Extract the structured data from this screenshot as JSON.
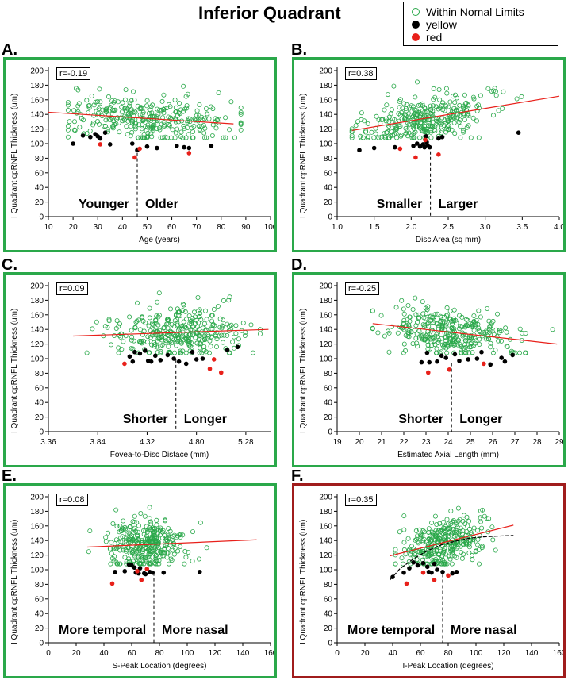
{
  "figure": {
    "title": "Inferior Quadrant",
    "legend": [
      {
        "label": "Within Nomal Limits",
        "kind": "open",
        "color": "#2aa84a"
      },
      {
        "label": "yellow",
        "kind": "filled",
        "color": "#000000"
      },
      {
        "label": "red",
        "kind": "filled",
        "color": "#e8201a"
      }
    ]
  },
  "chart_data": [
    {
      "id": "A",
      "letter": "A.",
      "type": "scatter",
      "frame_color": "#2aa84a",
      "r_label": "r=-0.19",
      "xlabel": "Age (years)",
      "ylabel": "I Quadrant cpRNFL Thickness (um)",
      "xlim": [
        10,
        100
      ],
      "ylim": [
        0,
        200
      ],
      "xticks": [
        10,
        20,
        30,
        40,
        50,
        60,
        70,
        80,
        90,
        100
      ],
      "xtick_labels": [
        "10",
        "20",
        "30",
        "40",
        "50",
        "60",
        "70",
        "80",
        "90",
        "100"
      ],
      "yticks": [
        0,
        20,
        40,
        60,
        80,
        100,
        120,
        140,
        160,
        180,
        200
      ],
      "normal_x_range": [
        18,
        88
      ],
      "normal_center": 51,
      "normal_x_sd": 17,
      "normal_count": 320,
      "trend": {
        "x": [
          10,
          85
        ],
        "y": [
          143,
          127
        ]
      },
      "divider_x": 46,
      "divider_y": 95,
      "left_label": "Younger",
      "right_label": "Older",
      "yellow": [
        [
          20,
          100
        ],
        [
          24,
          111
        ],
        [
          27,
          109
        ],
        [
          29,
          113
        ],
        [
          30,
          110
        ],
        [
          31,
          107
        ],
        [
          33,
          115
        ],
        [
          35,
          99
        ],
        [
          44,
          100
        ],
        [
          46,
          91
        ],
        [
          50,
          96
        ],
        [
          54,
          94
        ],
        [
          62,
          97
        ],
        [
          65,
          95
        ],
        [
          67,
          94
        ],
        [
          76,
          97
        ]
      ],
      "red": [
        [
          31,
          99
        ],
        [
          45,
          81
        ],
        [
          47,
          93
        ],
        [
          67,
          87
        ]
      ]
    },
    {
      "id": "B",
      "letter": "B.",
      "type": "scatter",
      "frame_color": "#2aa84a",
      "r_label": "r=0.38",
      "xlabel": "Disc Area (sq mm)",
      "ylabel": "I Quadrant cpRNFL Thickness (um)",
      "xlim": [
        1.0,
        4.0
      ],
      "ylim": [
        0,
        200
      ],
      "xticks": [
        1.0,
        1.5,
        2.0,
        2.5,
        3.0,
        3.5,
        4.0
      ],
      "xtick_labels": [
        "1.0",
        "1.5",
        "2.0",
        "2.5",
        "3.0",
        "3.5",
        "4.0"
      ],
      "yticks": [
        0,
        20,
        40,
        60,
        80,
        100,
        120,
        140,
        160,
        180,
        200
      ],
      "normal_x_range": [
        1.2,
        3.9
      ],
      "normal_center": 2.25,
      "normal_x_sd": 0.45,
      "normal_count": 330,
      "trend": {
        "x": [
          1.2,
          4.0
        ],
        "y": [
          118,
          165
        ]
      },
      "divider_x": 2.26,
      "divider_y": 97,
      "left_label": "Smaller",
      "right_label": "Larger",
      "yellow": [
        [
          1.3,
          91
        ],
        [
          1.5,
          94
        ],
        [
          1.78,
          95
        ],
        [
          2.03,
          97
        ],
        [
          2.08,
          100
        ],
        [
          2.12,
          96
        ],
        [
          2.16,
          99
        ],
        [
          2.18,
          95
        ],
        [
          2.2,
          110
        ],
        [
          2.21,
          102
        ],
        [
          2.22,
          98
        ],
        [
          2.25,
          95
        ],
        [
          2.37,
          107
        ],
        [
          2.42,
          109
        ],
        [
          3.45,
          115
        ]
      ],
      "red": [
        [
          1.85,
          93
        ],
        [
          2.06,
          81
        ],
        [
          2.19,
          105
        ],
        [
          2.37,
          85
        ]
      ]
    },
    {
      "id": "C",
      "letter": "C.",
      "type": "scatter",
      "frame_color": "#2aa84a",
      "r_label": "r=0.09",
      "xlabel": "Fovea-to-Disc Distace (mm)",
      "ylabel": "I Quadrant cpRNFL Thickness (um)",
      "xlim": [
        3.36,
        5.52
      ],
      "ylim": [
        0,
        200
      ],
      "xticks": [
        3.36,
        3.84,
        4.32,
        4.8,
        5.28
      ],
      "xtick_labels": [
        "3.36",
        "3.84",
        "4.32",
        "4.80",
        "5.28"
      ],
      "yticks": [
        0,
        20,
        40,
        60,
        80,
        100,
        120,
        140,
        160,
        180,
        200
      ],
      "normal_x_range": [
        3.62,
        5.42
      ],
      "normal_center": 4.6,
      "normal_x_sd": 0.33,
      "normal_count": 330,
      "trend": {
        "x": [
          3.6,
          5.5
        ],
        "y": [
          131,
          140
        ]
      },
      "divider_x": 4.6,
      "divider_y": 99,
      "left_label": "Shorter",
      "right_label": "Longer",
      "yellow": [
        [
          4.15,
          103
        ],
        [
          4.18,
          96
        ],
        [
          4.2,
          109
        ],
        [
          4.25,
          107
        ],
        [
          4.3,
          111
        ],
        [
          4.33,
          97
        ],
        [
          4.36,
          96
        ],
        [
          4.4,
          104
        ],
        [
          4.45,
          98
        ],
        [
          4.52,
          105
        ],
        [
          4.58,
          100
        ],
        [
          4.63,
          96
        ],
        [
          4.7,
          93
        ],
        [
          4.76,
          109
        ],
        [
          4.8,
          99
        ],
        [
          4.86,
          100
        ],
        [
          5.1,
          112
        ],
        [
          5.2,
          116
        ]
      ],
      "red": [
        [
          4.1,
          93
        ],
        [
          4.93,
          86
        ],
        [
          4.97,
          99
        ],
        [
          5.04,
          81
        ]
      ]
    },
    {
      "id": "D",
      "letter": "D.",
      "type": "scatter",
      "frame_color": "#2aa84a",
      "r_label": "r=-0.25",
      "xlabel": "Estimated Axial Length (mm)",
      "ylabel": "I Quadrant cpRNFL Thickness (um)",
      "xlim": [
        19,
        29
      ],
      "ylim": [
        0,
        200
      ],
      "xticks": [
        19,
        20,
        21,
        22,
        23,
        24,
        25,
        26,
        27,
        28,
        29
      ],
      "xtick_labels": [
        "19",
        "20",
        "21",
        "22",
        "23",
        "24",
        "25",
        "26",
        "27",
        "28",
        "29"
      ],
      "yticks": [
        0,
        20,
        40,
        60,
        80,
        100,
        120,
        140,
        160,
        180,
        200
      ],
      "normal_x_range": [
        20.6,
        28.7
      ],
      "normal_center": 24.0,
      "normal_x_sd": 1.4,
      "normal_count": 330,
      "trend": {
        "x": [
          20.6,
          28.9
        ],
        "y": [
          148,
          120
        ]
      },
      "divider_x": 24.15,
      "divider_y": 94,
      "left_label": "Shorter",
      "right_label": "Longer",
      "yellow": [
        [
          22.8,
          95
        ],
        [
          23.05,
          108
        ],
        [
          23.15,
          95
        ],
        [
          23.5,
          96
        ],
        [
          23.7,
          104
        ],
        [
          23.9,
          101
        ],
        [
          24.3,
          106
        ],
        [
          24.5,
          97
        ],
        [
          24.9,
          99
        ],
        [
          25.3,
          100
        ],
        [
          25.5,
          109
        ],
        [
          25.9,
          92
        ],
        [
          26.4,
          101
        ],
        [
          26.55,
          96
        ],
        [
          26.9,
          105
        ]
      ],
      "red": [
        [
          23.1,
          81
        ],
        [
          24.05,
          85
        ],
        [
          25.6,
          93
        ]
      ]
    },
    {
      "id": "E",
      "letter": "E.",
      "type": "scatter",
      "frame_color": "#2aa84a",
      "r_label": "r=0.08",
      "xlabel": "S-Peak Location (degrees)",
      "ylabel": "I Quadrant cpRNFL Thickness (um)",
      "xlim": [
        0,
        160
      ],
      "ylim": [
        0,
        200
      ],
      "xticks": [
        0,
        20,
        40,
        60,
        80,
        100,
        120,
        140,
        160
      ],
      "xtick_labels": [
        "0",
        "20",
        "40",
        "60",
        "80",
        "100",
        "120",
        "140",
        "160"
      ],
      "yticks": [
        0,
        20,
        40,
        60,
        80,
        100,
        120,
        140,
        160,
        180,
        200
      ],
      "normal_x_range": [
        28,
        150
      ],
      "normal_center": 70,
      "normal_x_sd": 14,
      "normal_count": 330,
      "trend": {
        "x": [
          28,
          150
        ],
        "y": [
          131,
          141
        ]
      },
      "divider_x": 76,
      "divider_y": 96,
      "left_label": "More temporal",
      "right_label": "More nasal",
      "yellow": [
        [
          48,
          97
        ],
        [
          55,
          98
        ],
        [
          58,
          107
        ],
        [
          60,
          106
        ],
        [
          62,
          103
        ],
        [
          63,
          96
        ],
        [
          65,
          95
        ],
        [
          66,
          102
        ],
        [
          69,
          95
        ],
        [
          70,
          94
        ],
        [
          73,
          97
        ],
        [
          75,
          96
        ],
        [
          83,
          96
        ],
        [
          109,
          97
        ]
      ],
      "red": [
        [
          46,
          81
        ],
        [
          64,
          98
        ],
        [
          67,
          86
        ],
        [
          71,
          101
        ]
      ]
    },
    {
      "id": "F",
      "letter": "F.",
      "type": "scatter",
      "frame_color": "#a01c1c",
      "r_label": "r=0.35",
      "xlabel": "I-Peak Location (degrees)",
      "ylabel": "I Quadrant cpRNFL Thickness (um)",
      "xlim": [
        0,
        160
      ],
      "ylim": [
        0,
        200
      ],
      "xticks": [
        0,
        20,
        40,
        60,
        80,
        100,
        120,
        140,
        160
      ],
      "xtick_labels": [
        "0",
        "20",
        "40",
        "60",
        "80",
        "100",
        "120",
        "140",
        "160"
      ],
      "yticks": [
        0,
        20,
        40,
        60,
        80,
        100,
        120,
        140,
        160,
        180,
        200
      ],
      "normal_x_range": [
        42,
        128
      ],
      "normal_center": 78,
      "normal_x_sd": 14,
      "normal_count": 330,
      "trend": {
        "x": [
          38,
          127
        ],
        "y": [
          119,
          161
        ]
      },
      "curve": {
        "x": [
          38,
          45,
          55,
          65,
          75,
          85,
          95,
          105,
          115,
          127
        ],
        "y": [
          86,
          101,
          115,
          126,
          134,
          139,
          143,
          145,
          146,
          147
        ]
      },
      "divider_x": 76,
      "divider_y": 94,
      "left_label": "More temporal",
      "right_label": "More nasal",
      "yellow": [
        [
          40,
          90
        ],
        [
          48,
          96
        ],
        [
          52,
          102
        ],
        [
          55,
          110
        ],
        [
          58,
          106
        ],
        [
          62,
          109
        ],
        [
          65,
          104
        ],
        [
          66,
          97
        ],
        [
          68,
          96
        ],
        [
          70,
          108
        ],
        [
          72,
          100
        ],
        [
          76,
          97
        ],
        [
          83,
          95
        ],
        [
          86,
          97
        ]
      ],
      "red": [
        [
          50,
          81
        ],
        [
          62,
          96
        ],
        [
          70,
          86
        ],
        [
          80,
          92
        ]
      ]
    }
  ]
}
